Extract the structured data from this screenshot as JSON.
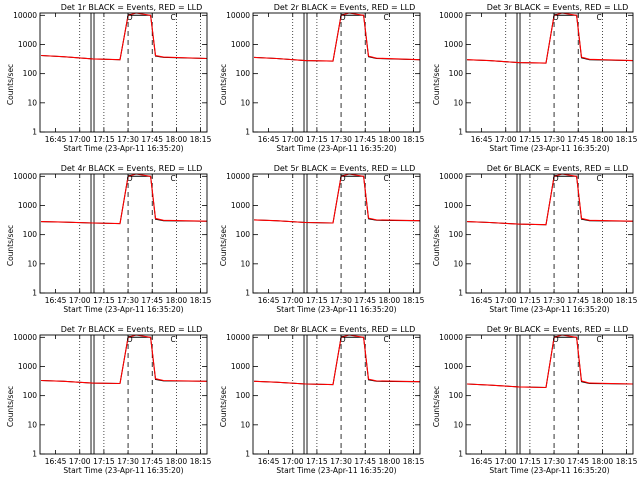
{
  "figure": {
    "background": "#ffffff",
    "event_color": "#000000",
    "lld_color": "#ff0000"
  },
  "chart_data": [
    {
      "type": "line",
      "title": "Det 1r BLACK = Events, RED = LLD",
      "ylabel": "Counts/sec",
      "xlabel": "Start Time (23-Apr-11 16:35:20)",
      "x_ticks": [
        "16:45",
        "17:00",
        "17:15",
        "17:30",
        "17:45",
        "18:00",
        "18:15"
      ],
      "y_ticks": [
        "1",
        "10",
        "100",
        "1000",
        "10000"
      ],
      "yscale": "log",
      "ylim": [
        1,
        12000
      ],
      "xlim": [
        "16:35:20",
        "18:19"
      ],
      "markers": [
        "O",
        "C"
      ],
      "series": [
        {
          "name": "BLACK = Events",
          "color": "#000000",
          "x": [
            "16:36",
            "16:50",
            "17:08",
            "17:25",
            "17:30",
            "17:35",
            "17:44",
            "17:47",
            "17:52",
            "18:19"
          ],
          "y": [
            420,
            380,
            320,
            300,
            10000,
            10000,
            10000,
            400,
            360,
            330
          ]
        },
        {
          "name": "RED = LLD",
          "color": "#ff0000",
          "x": [
            "16:36",
            "16:50",
            "17:08",
            "17:25",
            "17:30",
            "17:35",
            "17:44",
            "17:47",
            "17:52",
            "18:19"
          ],
          "y": [
            420,
            380,
            320,
            300,
            10000,
            12000,
            10000,
            420,
            370,
            330
          ]
        }
      ]
    },
    {
      "type": "line",
      "title": "Det 2r BLACK = Events, RED = LLD",
      "ylabel": "Counts/sec",
      "xlabel": "Start Time (23-Apr-11 16:35:20)",
      "x_ticks": [
        "16:45",
        "17:00",
        "17:15",
        "17:30",
        "17:45",
        "18:00",
        "18:15"
      ],
      "y_ticks": [
        "1",
        "10",
        "100",
        "1000",
        "10000"
      ],
      "yscale": "log",
      "ylim": [
        1,
        12000
      ],
      "xlim": [
        "16:35:20",
        "18:19"
      ],
      "markers": [
        "O",
        "C"
      ],
      "series": [
        {
          "name": "BLACK = Events",
          "color": "#000000",
          "x": [
            "16:36",
            "16:50",
            "17:08",
            "17:25",
            "17:30",
            "17:35",
            "17:44",
            "17:47",
            "17:52",
            "18:19"
          ],
          "y": [
            360,
            330,
            280,
            270,
            10000,
            10000,
            10000,
            380,
            330,
            300
          ]
        },
        {
          "name": "RED = LLD",
          "color": "#ff0000",
          "x": [
            "16:36",
            "16:50",
            "17:08",
            "17:25",
            "17:30",
            "17:35",
            "17:44",
            "17:47",
            "17:52",
            "18:19"
          ],
          "y": [
            360,
            330,
            280,
            270,
            10000,
            12000,
            10000,
            400,
            340,
            300
          ]
        }
      ]
    },
    {
      "type": "line",
      "title": "Det 3r BLACK = Events, RED = LLD",
      "ylabel": "Counts/sec",
      "xlabel": "Start Time (23-Apr-11 16:35:20)",
      "x_ticks": [
        "16:45",
        "17:00",
        "17:15",
        "17:30",
        "17:45",
        "18:00",
        "18:15"
      ],
      "y_ticks": [
        "1",
        "10",
        "100",
        "1000",
        "10000"
      ],
      "yscale": "log",
      "ylim": [
        1,
        12000
      ],
      "xlim": [
        "16:35:20",
        "18:19"
      ],
      "markers": [
        "O",
        "C"
      ],
      "series": [
        {
          "name": "BLACK = Events",
          "color": "#000000",
          "x": [
            "16:36",
            "16:50",
            "17:08",
            "17:25",
            "17:30",
            "17:35",
            "17:44",
            "17:47",
            "17:52",
            "18:19"
          ],
          "y": [
            300,
            280,
            240,
            230,
            10000,
            10000,
            10000,
            350,
            300,
            280
          ]
        },
        {
          "name": "RED = LLD",
          "color": "#ff0000",
          "x": [
            "16:36",
            "16:50",
            "17:08",
            "17:25",
            "17:30",
            "17:35",
            "17:44",
            "17:47",
            "17:52",
            "18:19"
          ],
          "y": [
            300,
            280,
            240,
            230,
            10000,
            12000,
            10000,
            370,
            310,
            280
          ]
        }
      ]
    },
    {
      "type": "line",
      "title": "Det 4r BLACK = Events, RED = LLD",
      "ylabel": "Counts/sec",
      "xlabel": "Start Time (23-Apr-11 16:35:20)",
      "x_ticks": [
        "16:45",
        "17:00",
        "17:15",
        "17:30",
        "17:45",
        "18:00",
        "18:15"
      ],
      "y_ticks": [
        "1",
        "10",
        "100",
        "1000",
        "10000"
      ],
      "yscale": "log",
      "ylim": [
        1,
        12000
      ],
      "xlim": [
        "16:35:20",
        "18:19"
      ],
      "markers": [
        "O",
        "C"
      ],
      "series": [
        {
          "name": "BLACK = Events",
          "color": "#000000",
          "x": [
            "16:36",
            "16:50",
            "17:08",
            "17:25",
            "17:30",
            "17:35",
            "17:44",
            "17:47",
            "17:52",
            "18:19"
          ],
          "y": [
            280,
            270,
            250,
            240,
            10000,
            10000,
            10000,
            340,
            300,
            290
          ]
        },
        {
          "name": "RED = LLD",
          "color": "#ff0000",
          "x": [
            "16:36",
            "16:50",
            "17:08",
            "17:25",
            "17:30",
            "17:35",
            "17:44",
            "17:47",
            "17:52",
            "18:19"
          ],
          "y": [
            280,
            270,
            250,
            240,
            10000,
            12000,
            10000,
            360,
            310,
            290
          ]
        }
      ]
    },
    {
      "type": "line",
      "title": "Det 5r BLACK = Events, RED = LLD",
      "ylabel": "Counts/sec",
      "xlabel": "Start Time (23-Apr-11 16:35:20)",
      "x_ticks": [
        "16:45",
        "17:00",
        "17:15",
        "17:30",
        "17:45",
        "18:00",
        "18:15"
      ],
      "y_ticks": [
        "1",
        "10",
        "100",
        "1000",
        "10000"
      ],
      "yscale": "log",
      "ylim": [
        1,
        12000
      ],
      "xlim": [
        "16:35:20",
        "18:19"
      ],
      "markers": [
        "O",
        "C"
      ],
      "series": [
        {
          "name": "BLACK = Events",
          "color": "#000000",
          "x": [
            "16:36",
            "16:50",
            "17:08",
            "17:25",
            "17:30",
            "17:35",
            "17:44",
            "17:47",
            "17:52",
            "18:19"
          ],
          "y": [
            320,
            300,
            260,
            250,
            10000,
            10000,
            10000,
            350,
            310,
            300
          ]
        },
        {
          "name": "RED = LLD",
          "color": "#ff0000",
          "x": [
            "16:36",
            "16:50",
            "17:08",
            "17:25",
            "17:30",
            "17:35",
            "17:44",
            "17:47",
            "17:52",
            "18:19"
          ],
          "y": [
            320,
            300,
            260,
            250,
            10000,
            12000,
            10000,
            370,
            320,
            300
          ]
        }
      ]
    },
    {
      "type": "line",
      "title": "Det 6r BLACK = Events, RED = LLD",
      "ylabel": "Counts/sec",
      "xlabel": "Start Time (23-Apr-11 16:35:20)",
      "x_ticks": [
        "16:45",
        "17:00",
        "17:15",
        "17:30",
        "17:45",
        "18:00",
        "18:15"
      ],
      "y_ticks": [
        "1",
        "10",
        "100",
        "1000",
        "10000"
      ],
      "yscale": "log",
      "ylim": [
        1,
        12000
      ],
      "xlim": [
        "16:35:20",
        "18:19"
      ],
      "markers": [
        "O",
        "C"
      ],
      "series": [
        {
          "name": "BLACK = Events",
          "color": "#000000",
          "x": [
            "16:36",
            "16:50",
            "17:08",
            "17:25",
            "17:30",
            "17:35",
            "17:44",
            "17:47",
            "17:52",
            "18:19"
          ],
          "y": [
            280,
            260,
            230,
            220,
            10000,
            10000,
            10000,
            340,
            300,
            290
          ]
        },
        {
          "name": "RED = LLD",
          "color": "#ff0000",
          "x": [
            "16:36",
            "16:50",
            "17:08",
            "17:25",
            "17:30",
            "17:35",
            "17:44",
            "17:47",
            "17:52",
            "18:19"
          ],
          "y": [
            280,
            260,
            230,
            220,
            10000,
            12000,
            10000,
            360,
            310,
            290
          ]
        }
      ]
    },
    {
      "type": "line",
      "title": "Det 7r BLACK = Events, RED = LLD",
      "ylabel": "Counts/sec",
      "xlabel": "Start Time (23-Apr-11 16:35:20)",
      "x_ticks": [
        "16:45",
        "17:00",
        "17:15",
        "17:30",
        "17:45",
        "18:00",
        "18:15"
      ],
      "y_ticks": [
        "1",
        "10",
        "100",
        "1000",
        "10000"
      ],
      "yscale": "log",
      "ylim": [
        1,
        12000
      ],
      "xlim": [
        "16:35:20",
        "18:19"
      ],
      "markers": [
        "O",
        "C"
      ],
      "series": [
        {
          "name": "BLACK = Events",
          "color": "#000000",
          "x": [
            "16:36",
            "16:50",
            "17:08",
            "17:25",
            "17:30",
            "17:35",
            "17:44",
            "17:47",
            "17:52",
            "18:19"
          ],
          "y": [
            330,
            310,
            270,
            260,
            10000,
            10000,
            10000,
            360,
            320,
            310
          ]
        },
        {
          "name": "RED = LLD",
          "color": "#ff0000",
          "x": [
            "16:36",
            "16:50",
            "17:08",
            "17:25",
            "17:30",
            "17:35",
            "17:44",
            "17:47",
            "17:52",
            "18:19"
          ],
          "y": [
            330,
            310,
            270,
            260,
            10000,
            12000,
            10000,
            380,
            330,
            310
          ]
        }
      ]
    },
    {
      "type": "line",
      "title": "Det 8r BLACK = Events, RED = LLD",
      "ylabel": "Counts/sec",
      "xlabel": "Start Time (23-Apr-11 16:35:20)",
      "x_ticks": [
        "16:45",
        "17:00",
        "17:15",
        "17:30",
        "17:45",
        "18:00",
        "18:15"
      ],
      "y_ticks": [
        "1",
        "10",
        "100",
        "1000",
        "10000"
      ],
      "yscale": "log",
      "ylim": [
        1,
        12000
      ],
      "xlim": [
        "16:35:20",
        "18:19"
      ],
      "markers": [
        "O",
        "C"
      ],
      "series": [
        {
          "name": "BLACK = Events",
          "color": "#000000",
          "x": [
            "16:36",
            "16:50",
            "17:08",
            "17:25",
            "17:30",
            "17:35",
            "17:44",
            "17:47",
            "17:52",
            "18:19"
          ],
          "y": [
            310,
            290,
            250,
            240,
            10000,
            10000,
            10000,
            350,
            310,
            300
          ]
        },
        {
          "name": "RED = LLD",
          "color": "#ff0000",
          "x": [
            "16:36",
            "16:50",
            "17:08",
            "17:25",
            "17:30",
            "17:35",
            "17:44",
            "17:47",
            "17:52",
            "18:19"
          ],
          "y": [
            310,
            290,
            250,
            240,
            10000,
            12000,
            10000,
            370,
            320,
            300
          ]
        }
      ]
    },
    {
      "type": "line",
      "title": "Det 9r BLACK = Events, RED = LLD",
      "ylabel": "Counts/sec",
      "xlabel": "Start Time (23-Apr-11 16:35:20)",
      "x_ticks": [
        "16:45",
        "17:00",
        "17:15",
        "17:30",
        "17:45",
        "18:00",
        "18:15"
      ],
      "y_ticks": [
        "1",
        "10",
        "100",
        "1000",
        "10000"
      ],
      "yscale": "log",
      "ylim": [
        1,
        12000
      ],
      "xlim": [
        "16:35:20",
        "18:19"
      ],
      "markers": [
        "O",
        "C"
      ],
      "series": [
        {
          "name": "BLACK = Events",
          "color": "#000000",
          "x": [
            "16:36",
            "16:50",
            "17:08",
            "17:25",
            "17:30",
            "17:35",
            "17:44",
            "17:47",
            "17:52",
            "18:19"
          ],
          "y": [
            250,
            230,
            200,
            190,
            10000,
            10000,
            10000,
            300,
            260,
            250
          ]
        },
        {
          "name": "RED = LLD",
          "color": "#ff0000",
          "x": [
            "16:36",
            "16:50",
            "17:08",
            "17:25",
            "17:30",
            "17:35",
            "17:44",
            "17:47",
            "17:52",
            "18:19"
          ],
          "y": [
            250,
            230,
            200,
            190,
            10000,
            12000,
            10000,
            320,
            270,
            250
          ]
        }
      ]
    }
  ]
}
